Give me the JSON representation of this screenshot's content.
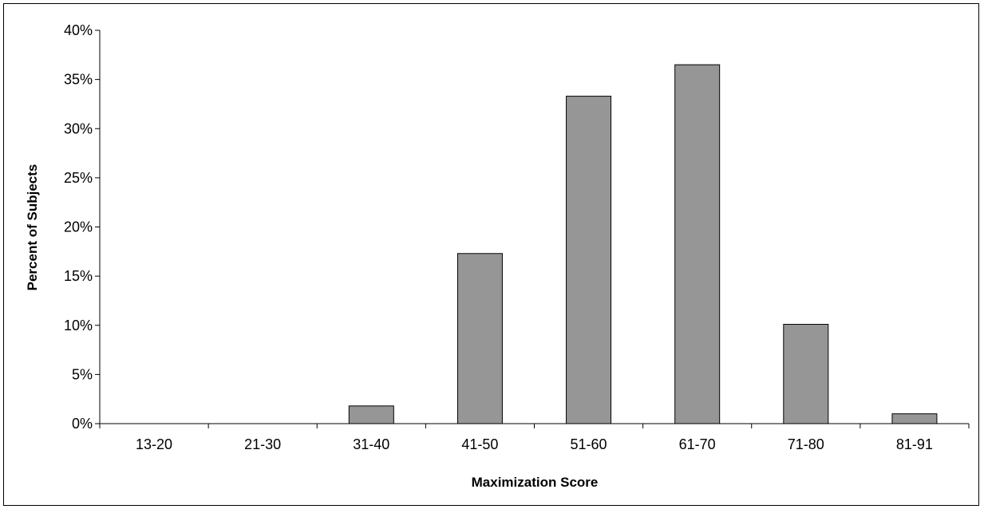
{
  "chart_data": {
    "type": "bar",
    "title": "",
    "xlabel": "Maximization Score",
    "ylabel": "Percent of Subjects",
    "categories": [
      "13-20",
      "21-30",
      "31-40",
      "41-50",
      "51-60",
      "61-70",
      "71-80",
      "81-91"
    ],
    "values": [
      0,
      0,
      1.8,
      17.3,
      33.3,
      36.5,
      10.1,
      1.0
    ],
    "ylim": [
      0,
      40
    ],
    "yticks": [
      0,
      5,
      10,
      15,
      20,
      25,
      30,
      35,
      40
    ],
    "ytick_labels": [
      "0%",
      "5%",
      "10%",
      "15%",
      "20%",
      "25%",
      "30%",
      "35%",
      "40%"
    ],
    "grid": false,
    "legend": "none",
    "bar_color": "#969696",
    "bar_edge_color": "#000000"
  }
}
